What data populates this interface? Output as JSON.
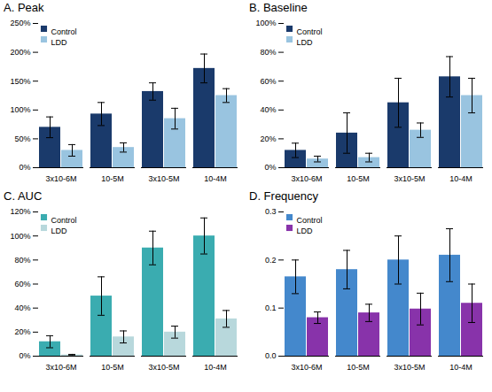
{
  "chart_data": [
    {
      "type": "bar",
      "title": "A. Peak",
      "categories": [
        "3x10-6M",
        "10-5M",
        "3x10-5M",
        "10-4M"
      ],
      "series": [
        {
          "name": "Control",
          "color": "#1a3a6b",
          "values": [
            70,
            93,
            132,
            172
          ],
          "errors": [
            18,
            20,
            15,
            25
          ]
        },
        {
          "name": "LDD",
          "color": "#99c4e0",
          "values": [
            30,
            35,
            85,
            125
          ],
          "errors": [
            10,
            8,
            18,
            12
          ]
        }
      ],
      "ylim": [
        0,
        250
      ],
      "yticks": [
        {
          "value": 0,
          "label": "0%"
        },
        {
          "value": 50,
          "label": "50%"
        },
        {
          "value": 100,
          "label": "100%"
        },
        {
          "value": 150,
          "label": "150%"
        },
        {
          "value": 200,
          "label": "200%"
        },
        {
          "value": 250,
          "label": "250%"
        }
      ],
      "legend": "upper left"
    },
    {
      "type": "bar",
      "title": "B. Baseline",
      "categories": [
        "3x10-6M",
        "10-5M",
        "3x10-5M",
        "10-4M"
      ],
      "series": [
        {
          "name": "Control",
          "color": "#1a3a6b",
          "values": [
            12,
            24,
            45,
            63
          ],
          "errors": [
            5,
            14,
            17,
            14
          ]
        },
        {
          "name": "LDD",
          "color": "#99c4e0",
          "values": [
            6,
            7,
            26,
            50
          ],
          "errors": [
            2,
            3,
            5,
            12
          ]
        }
      ],
      "ylim": [
        0,
        100
      ],
      "yticks": [
        {
          "value": 0,
          "label": "0%"
        },
        {
          "value": 20,
          "label": "20%"
        },
        {
          "value": 40,
          "label": "40%"
        },
        {
          "value": 60,
          "label": "60%"
        },
        {
          "value": 80,
          "label": "80%"
        },
        {
          "value": 100,
          "label": "100%"
        }
      ],
      "legend": "upper left"
    },
    {
      "type": "bar",
      "title": "C. AUC",
      "categories": [
        "3x10-6M",
        "10-5M",
        "3x10-5M",
        "10-4M"
      ],
      "series": [
        {
          "name": "Control",
          "color": "#3aacb0",
          "values": [
            12,
            50,
            90,
            100
          ],
          "errors": [
            5,
            16,
            14,
            15
          ]
        },
        {
          "name": "LDD",
          "color": "#b8d8dc",
          "values": [
            1,
            16,
            20,
            31
          ],
          "errors": [
            0.5,
            5,
            5,
            7
          ]
        }
      ],
      "ylim": [
        0,
        120
      ],
      "yticks": [
        {
          "value": 0,
          "label": "0%"
        },
        {
          "value": 20,
          "label": "20%"
        },
        {
          "value": 40,
          "label": "40%"
        },
        {
          "value": 60,
          "label": "60%"
        },
        {
          "value": 80,
          "label": "80%"
        },
        {
          "value": 100,
          "label": "100%"
        },
        {
          "value": 120,
          "label": "120%"
        }
      ],
      "legend": "upper left"
    },
    {
      "type": "bar",
      "title": "D. Frequency",
      "categories": [
        "3x10-6M",
        "10-5M",
        "3x10-5M",
        "10-4M"
      ],
      "series": [
        {
          "name": "Control",
          "color": "#4488cc",
          "values": [
            0.165,
            0.18,
            0.2,
            0.21
          ],
          "errors": [
            0.035,
            0.04,
            0.05,
            0.055
          ]
        },
        {
          "name": "LDD",
          "color": "#8833aa",
          "values": [
            0.08,
            0.09,
            0.098,
            0.11
          ],
          "errors": [
            0.012,
            0.018,
            0.033,
            0.04
          ]
        }
      ],
      "ylim": [
        0,
        0.3
      ],
      "yticks": [
        {
          "value": 0.0,
          "label": "0.0"
        },
        0.1,
        0.2,
        0.3
      ],
      "legend": "upper left"
    }
  ]
}
